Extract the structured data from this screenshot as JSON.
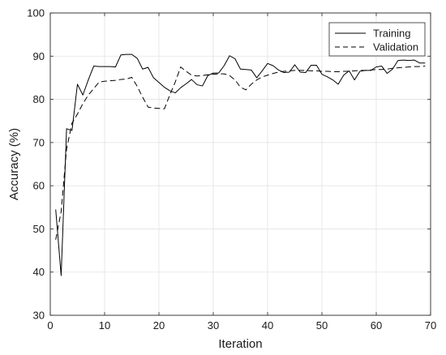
{
  "chart_data": {
    "type": "line",
    "title": "",
    "xlabel": "Iteration",
    "ylabel": "Accuracy (%)",
    "xlim": [
      0,
      70
    ],
    "ylim": [
      30,
      100
    ],
    "xticks": [
      0,
      10,
      20,
      30,
      40,
      50,
      60,
      70
    ],
    "yticks": [
      30,
      40,
      50,
      60,
      70,
      80,
      90,
      100
    ],
    "grid": true,
    "legend_position": "top-right",
    "series": [
      {
        "name": "Training",
        "style": "solid",
        "color": "#000000",
        "x": [
          1,
          2,
          3,
          4,
          5,
          6,
          7,
          8,
          9,
          10,
          11,
          12,
          13,
          14,
          15,
          16,
          17,
          18,
          19,
          20,
          21,
          22,
          23,
          24,
          25,
          26,
          27,
          28,
          29,
          30,
          31,
          32,
          33,
          34,
          35,
          36,
          37,
          38,
          39,
          40,
          41,
          42,
          43,
          44,
          45,
          46,
          47,
          48,
          49,
          50,
          51,
          52,
          53,
          54,
          55,
          56,
          57,
          58,
          59,
          60,
          61,
          62,
          63,
          64,
          65,
          66,
          67,
          68,
          69
        ],
        "y": [
          54.5,
          39.2,
          73.2,
          72.8,
          83.5,
          81.0,
          84.5,
          87.7,
          87.6,
          87.6,
          87.6,
          87.5,
          90.3,
          90.4,
          90.4,
          89.5,
          87.0,
          87.4,
          85.0,
          83.9,
          82.8,
          82.0,
          81.5,
          82.7,
          83.6,
          84.6,
          83.4,
          83.1,
          85.5,
          86.1,
          86.1,
          87.8,
          90.1,
          89.4,
          87.0,
          86.9,
          86.8,
          85.0,
          86.6,
          88.3,
          87.8,
          86.8,
          86.2,
          86.3,
          88.0,
          86.3,
          86.2,
          87.9,
          87.9,
          85.8,
          85.2,
          84.5,
          83.5,
          85.6,
          86.6,
          84.5,
          86.5,
          86.7,
          86.7,
          87.5,
          87.7,
          86.0,
          87.0,
          89.0,
          89.1,
          89.0,
          89.1,
          88.4,
          88.4
        ]
      },
      {
        "name": "Validation",
        "style": "dashed",
        "color": "#000000",
        "x": [
          1,
          2,
          3,
          4,
          5,
          6,
          7,
          8,
          9,
          10,
          11,
          12,
          13,
          14,
          15,
          16,
          17,
          18,
          19,
          20,
          21,
          22,
          23,
          24,
          25,
          26,
          27,
          28,
          29,
          30,
          31,
          32,
          33,
          34,
          35,
          36,
          37,
          38,
          39,
          40,
          41,
          42,
          43,
          44,
          45,
          46,
          47,
          48,
          49,
          50,
          51,
          52,
          53,
          54,
          55,
          56,
          57,
          58,
          59,
          60,
          61,
          62,
          63,
          64,
          65,
          66,
          67,
          68,
          69
        ],
        "y": [
          47.5,
          54.0,
          68.5,
          74.5,
          76.6,
          79.0,
          81.0,
          82.5,
          84.0,
          84.2,
          84.3,
          84.4,
          84.6,
          84.7,
          85.1,
          83.0,
          80.5,
          78.2,
          78.0,
          77.9,
          77.8,
          81.0,
          84.0,
          87.5,
          86.5,
          85.6,
          85.4,
          85.5,
          85.7,
          85.8,
          85.9,
          85.9,
          85.5,
          84.5,
          82.8,
          82.2,
          83.5,
          84.5,
          85.2,
          85.6,
          86.0,
          86.3,
          86.5,
          86.6,
          86.7,
          86.7,
          86.7,
          86.6,
          86.6,
          86.5,
          86.5,
          86.4,
          86.4,
          86.5,
          86.5,
          86.6,
          86.7,
          86.7,
          86.8,
          86.9,
          86.9,
          87.0,
          87.2,
          87.3,
          87.4,
          87.5,
          87.6,
          87.6,
          87.7
        ]
      }
    ]
  }
}
